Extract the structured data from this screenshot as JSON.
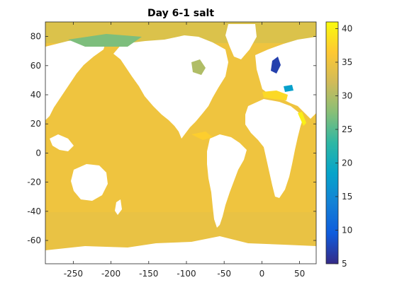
{
  "chart_data": {
    "type": "heatmap",
    "title": "Day 6-1 salt",
    "xlabel": "",
    "ylabel": "",
    "xlim": [
      -287,
      72
    ],
    "ylim": [
      -76,
      90
    ],
    "x_ticks": [
      -250,
      -200,
      -150,
      -100,
      -50,
      0,
      50
    ],
    "y_ticks": [
      80,
      60,
      40,
      20,
      0,
      -20,
      -40,
      -60
    ],
    "colorbar": {
      "min": 5,
      "max": 41,
      "ticks": [
        40,
        35,
        30,
        25,
        20,
        15,
        10,
        5
      ],
      "colormap": "parula",
      "colors": [
        "#352a87",
        "#0f5cdd",
        "#1481d6",
        "#06a4ca",
        "#2eb7a4",
        "#87bf77",
        "#d1bb59",
        "#fec832",
        "#f9fb0e"
      ]
    },
    "dominant_value": 35,
    "grid": false,
    "land_color": "#ffffff",
    "ocean_color": "#f2b43c",
    "features": [
      {
        "region": "Arctic Ocean (Beaufort / Siberian shelf)",
        "value": 27
      },
      {
        "region": "Baltic Sea",
        "value": 7
      },
      {
        "region": "Black Sea",
        "value": 18
      },
      {
        "region": "Mediterranean Sea",
        "value": 38
      },
      {
        "region": "Red Sea",
        "value": 40
      },
      {
        "region": "Hudson Bay",
        "value": 30
      },
      {
        "region": "Southern Ocean (Antarctic coast)",
        "value": 33.5
      },
      {
        "region": "Tropical Atlantic / Caribbean",
        "value": 37
      }
    ]
  }
}
